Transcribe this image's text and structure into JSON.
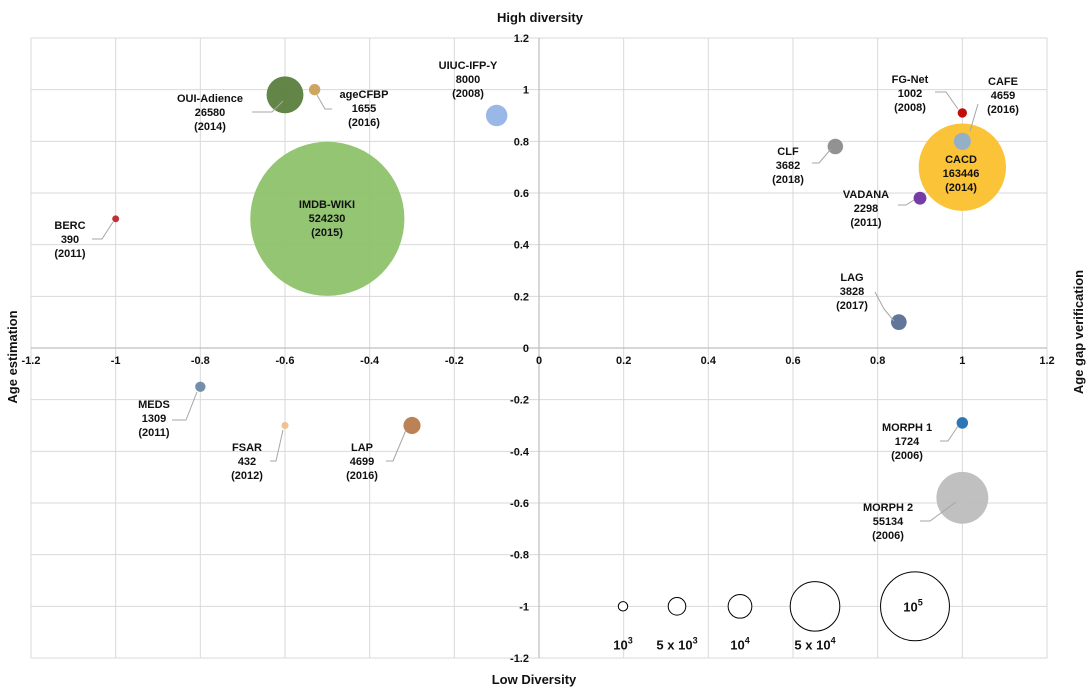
{
  "chart_data": {
    "type": "bubble",
    "title": "",
    "axis_titles": {
      "top": "High diversity",
      "bottom": "Low Diversity",
      "left": "Age estimation",
      "right": "Age gap verification"
    },
    "xlim": [
      -1.2,
      1.2
    ],
    "ylim": [
      -1.2,
      1.2
    ],
    "x_ticks": [
      "-1.2",
      "-1",
      "-0.8",
      "-0.6",
      "-0.4",
      "-0.2",
      "0",
      "0.2",
      "0.4",
      "0.6",
      "0.8",
      "1",
      "1.2"
    ],
    "y_ticks": [
      "1.2",
      "1",
      "0.8",
      "0.6",
      "0.4",
      "0.2",
      "0",
      "-0.2",
      "-0.4",
      "-0.6",
      "-0.8",
      "-1",
      "-1.2"
    ],
    "grid": true,
    "series": [
      {
        "name": "IMDB-WIKI",
        "x": -0.5,
        "y": 0.5,
        "size": 524230,
        "year": "(2015)",
        "color": "#8dc26a"
      },
      {
        "name": "OUI-Adience",
        "x": -0.6,
        "y": 0.98,
        "size": 26580,
        "year": "(2014)",
        "color": "#5b7f3e"
      },
      {
        "name": "ageCFBP",
        "x": -0.53,
        "y": 1.0,
        "size": 1655,
        "year": "(2016)",
        "color": "#c9a15a"
      },
      {
        "name": "UIUC-IFP-Y",
        "x": -0.1,
        "y": 0.9,
        "size": 8000,
        "year": "(2008)",
        "color": "#93b3e6"
      },
      {
        "name": "BERC",
        "x": -1.0,
        "y": 0.5,
        "size": 390,
        "year": "(2011)",
        "color": "#c0262c"
      },
      {
        "name": "FG-Net",
        "x": 1.0,
        "y": 0.91,
        "size": 1002,
        "year": "(2008)",
        "color": "#c00000"
      },
      {
        "name": "CACD",
        "x": 1.0,
        "y": 0.7,
        "size": 163446,
        "year": "(2014)",
        "color": "#fbc02d"
      },
      {
        "name": "CAFE",
        "x": 1.0,
        "y": 0.8,
        "size": 4659,
        "year": "(2016)",
        "color": "#8faecd"
      },
      {
        "name": "CLF",
        "x": 0.7,
        "y": 0.78,
        "size": 3682,
        "year": "(2018)",
        "color": "#8c8c8c"
      },
      {
        "name": "VADANA",
        "x": 0.9,
        "y": 0.58,
        "size": 2298,
        "year": "(2011)",
        "color": "#7030a0"
      },
      {
        "name": "LAG",
        "x": 0.85,
        "y": 0.1,
        "size": 3828,
        "year": "(2017)",
        "color": "#5a6f96"
      },
      {
        "name": "MEDS",
        "x": -0.8,
        "y": -0.15,
        "size": 1309,
        "year": "(2011)",
        "color": "#6c8aa6"
      },
      {
        "name": "FSAR",
        "x": -0.6,
        "y": -0.3,
        "size": 432,
        "year": "(2012)",
        "color": "#f0c08c"
      },
      {
        "name": "LAP",
        "x": -0.3,
        "y": -0.3,
        "size": 4699,
        "year": "(2016)",
        "color": "#b87a4b"
      },
      {
        "name": "MORPH 1",
        "x": 1.0,
        "y": -0.29,
        "size": 1724,
        "year": "(2006)",
        "color": "#1f6fb2"
      },
      {
        "name": "MORPH 2",
        "x": 1.0,
        "y": -0.58,
        "size": 55134,
        "year": "(2006)",
        "color": "#bdbdbd"
      }
    ],
    "size_legend": [
      {
        "coef": "",
        "base": "10",
        "exp": "3",
        "value": 1000
      },
      {
        "coef": "5 x ",
        "base": "10",
        "exp": "3",
        "value": 5000
      },
      {
        "coef": "",
        "base": "10",
        "exp": "4",
        "value": 10000
      },
      {
        "coef": "5 x ",
        "base": "10",
        "exp": "4",
        "value": 50000
      },
      {
        "coef": "",
        "base": "10",
        "exp": "5",
        "value": 100000
      }
    ]
  }
}
